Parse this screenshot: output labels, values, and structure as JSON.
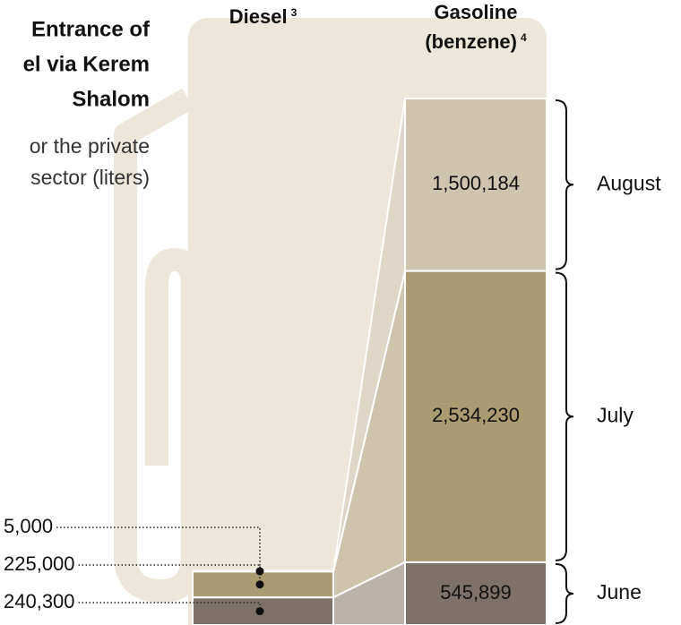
{
  "chart_data": {
    "type": "stacked-bar",
    "title_lines": [
      "Entrance of",
      "el via Kerem",
      "Shalom"
    ],
    "subtitle_lines": [
      "or the private",
      "sector (liters)"
    ],
    "categories": [
      "Diesel",
      "Gasoline (benzene)"
    ],
    "category_notes": [
      "3",
      "4"
    ],
    "series": [
      {
        "name": "June",
        "color": "#7e716a",
        "values": [
          240300,
          545899
        ],
        "value_labels": [
          "240,300",
          "545,899"
        ]
      },
      {
        "name": "July",
        "color": "#ab9b72",
        "values": [
          225000,
          2534230
        ],
        "value_labels": [
          "225,000",
          "2,534,230"
        ]
      },
      {
        "name": "August",
        "color": "#cfc4ad",
        "values": [
          5000,
          1500184
        ],
        "value_labels": [
          "5,000",
          "1,500,184"
        ]
      }
    ]
  }
}
